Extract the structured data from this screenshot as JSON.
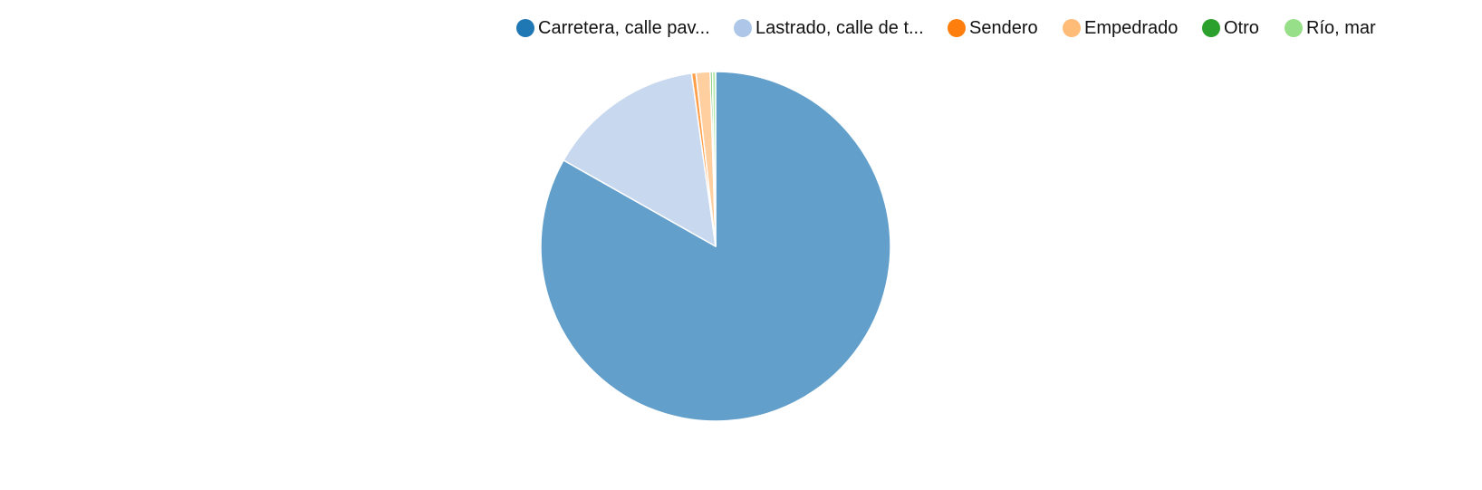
{
  "chart_data": {
    "type": "pie",
    "title": "",
    "legend_position": "top",
    "series": [
      {
        "name": "Carretera, calle pav...",
        "value": 83.2,
        "legend_color": "#1f77b4",
        "slice_color": "#629fca"
      },
      {
        "name": "Lastrado, calle de t...",
        "value": 14.6,
        "legend_color": "#aec7e8",
        "slice_color": "#c7d8ef"
      },
      {
        "name": "Sendero",
        "value": 0.4,
        "legend_color": "#ff7f0e",
        "slice_color": "#ff9f4a"
      },
      {
        "name": "Empedrado",
        "value": 1.3,
        "legend_color": "#ffbb78",
        "slice_color": "#ffcf9f"
      },
      {
        "name": "Otro",
        "value": 0.2,
        "legend_color": "#2ca02c",
        "slice_color": "#5cb85c"
      },
      {
        "name": "Río, mar",
        "value": 0.3,
        "legend_color": "#98df8a",
        "slice_color": "#b5e8aa"
      }
    ]
  }
}
